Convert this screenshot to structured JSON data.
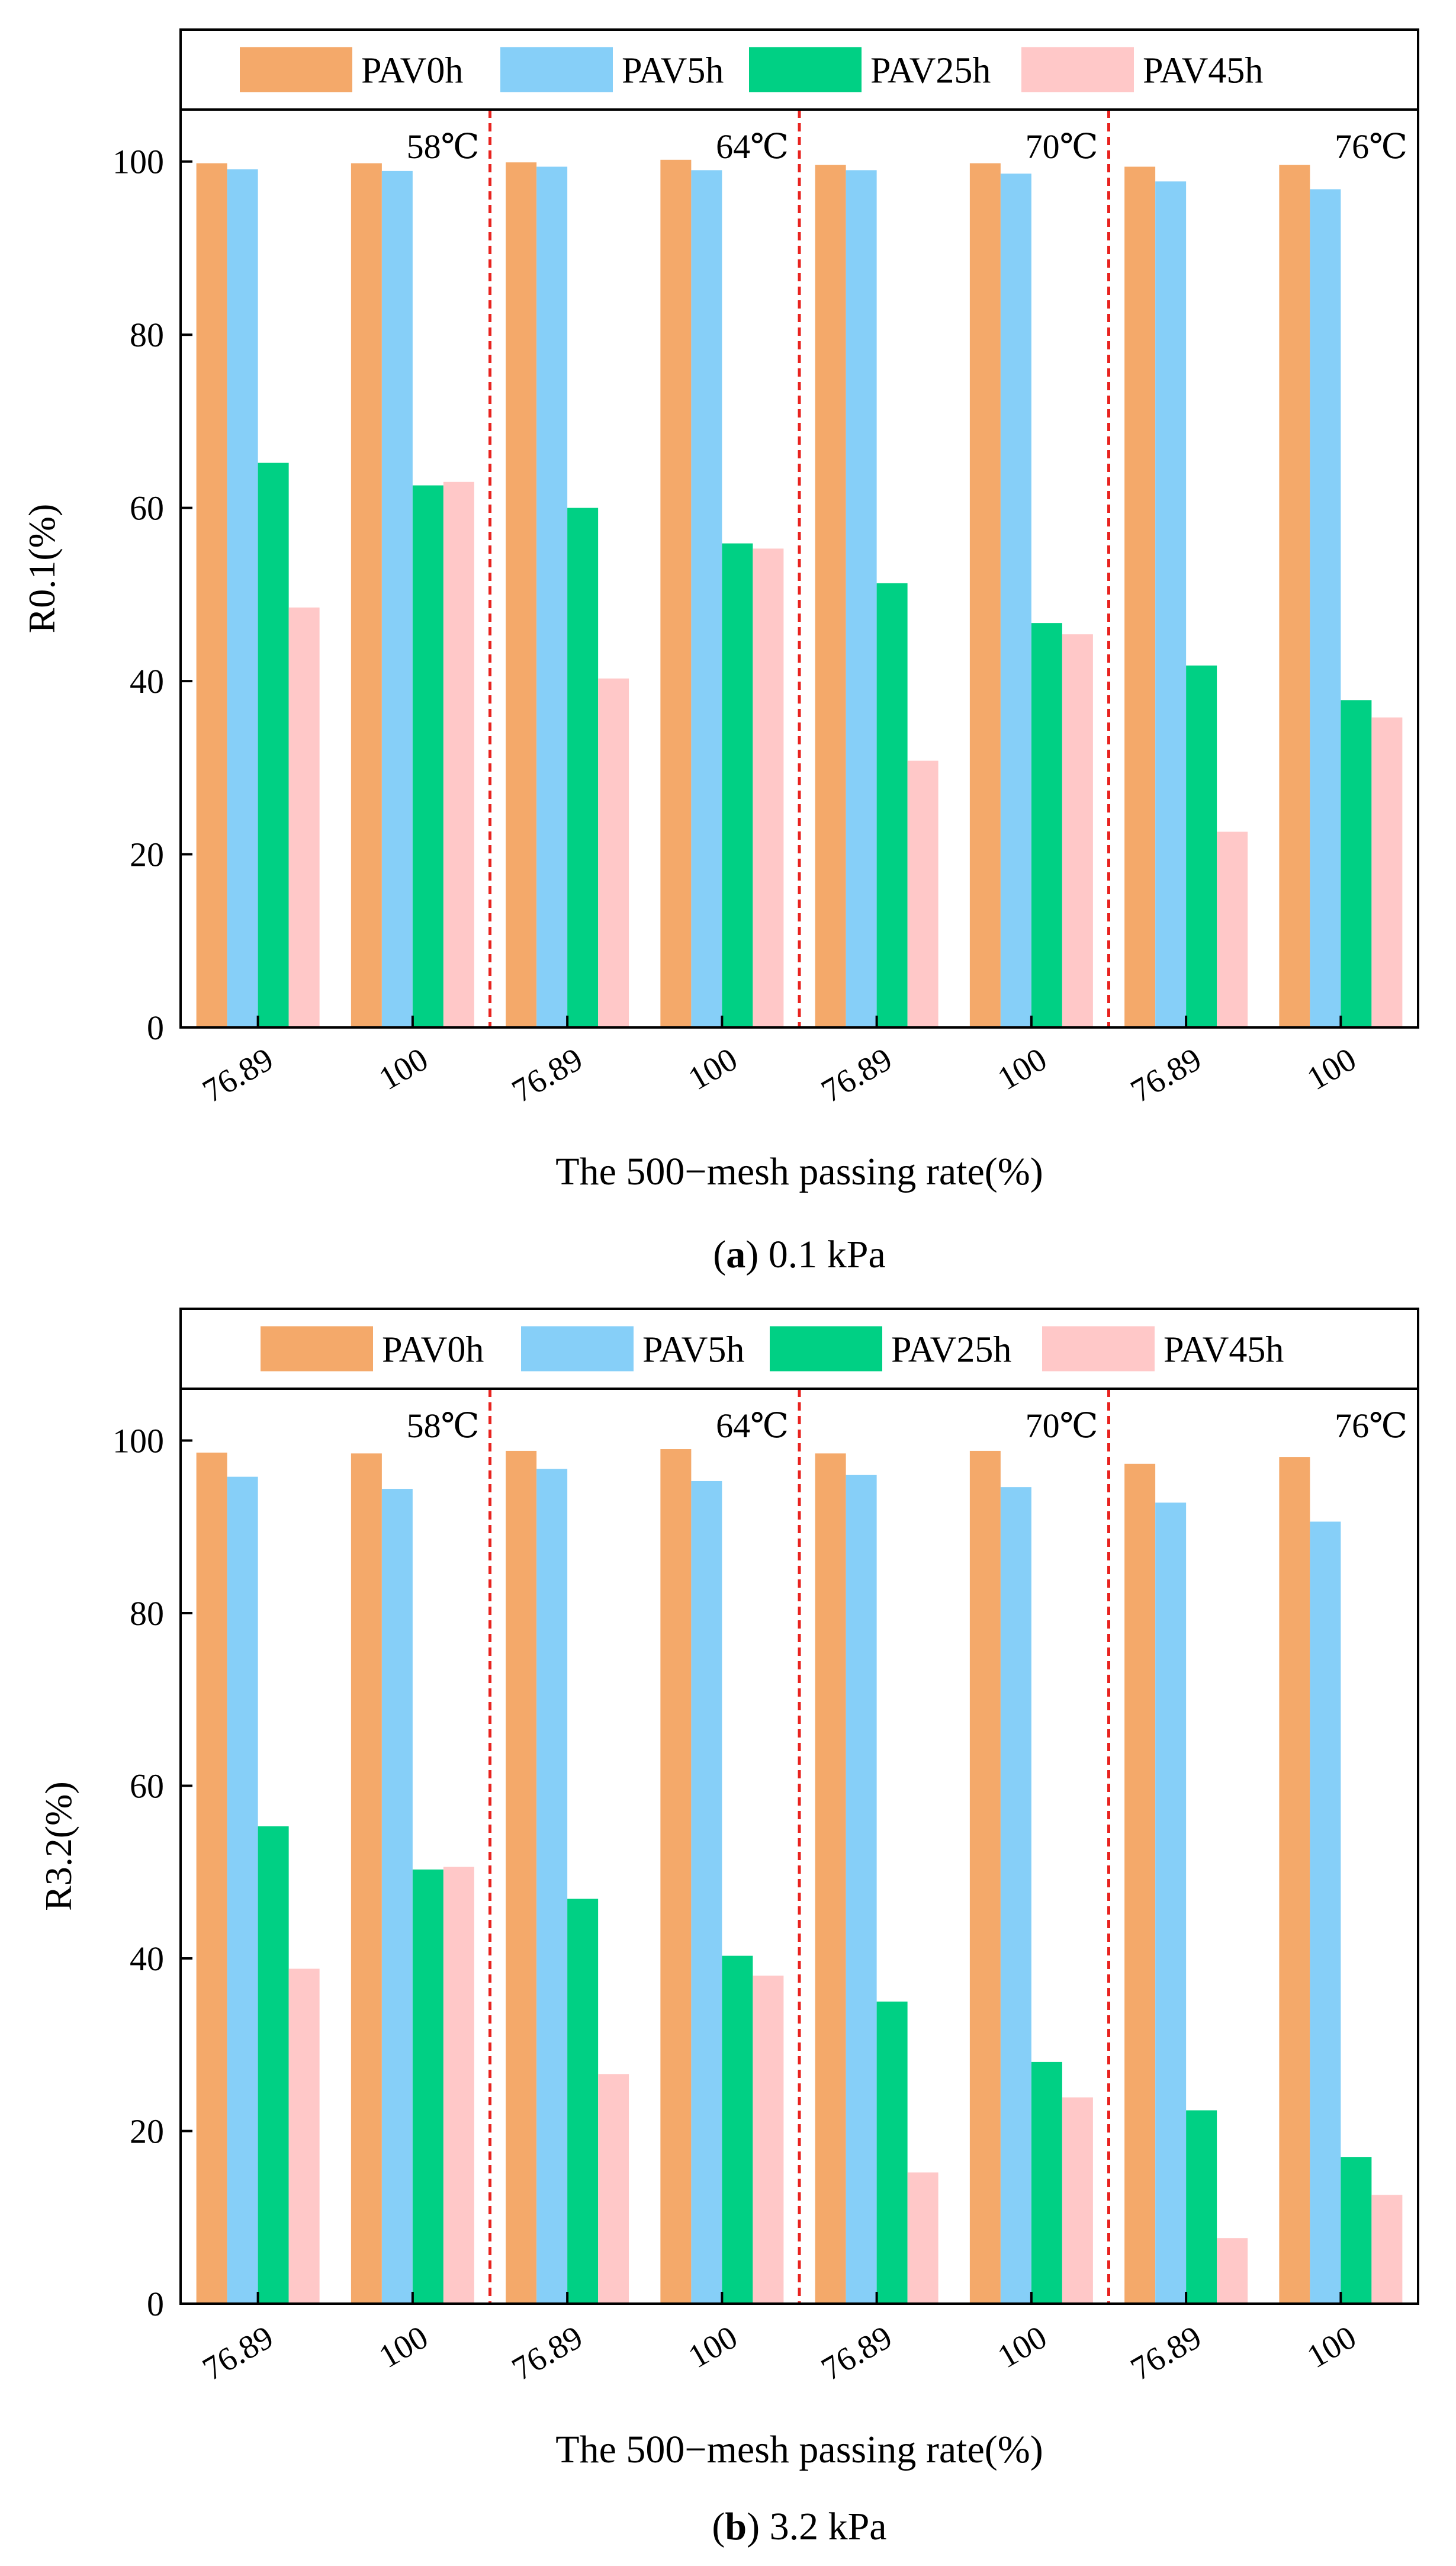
{
  "chart_data": [
    {
      "type": "bar",
      "panel_letter": "a",
      "caption": "0.1 kPa",
      "xlabel": "The 500−mesh passing rate(%)",
      "ylabel": "R0.1(%)",
      "ylim": [
        0,
        106
      ],
      "yticks": [
        0,
        20,
        40,
        60,
        80,
        100
      ],
      "categories": [
        "76.89",
        "100",
        "76.89",
        "100",
        "76.89",
        "100",
        "76.89",
        "100"
      ],
      "group_labels": [
        "58℃",
        "64℃",
        "70℃",
        "76℃"
      ],
      "legend_position": "top",
      "series": [
        {
          "name": "PAV0h",
          "color": "#F4A96A",
          "values": [
            99.8,
            99.8,
            99.9,
            100.2,
            99.6,
            99.8,
            99.4,
            99.6
          ]
        },
        {
          "name": "PAV5h",
          "color": "#86CFF8",
          "values": [
            99.1,
            98.9,
            99.4,
            99.0,
            99.0,
            98.6,
            97.7,
            96.8
          ]
        },
        {
          "name": "PAV25h",
          "color": "#00D084",
          "values": [
            65.2,
            62.6,
            60.0,
            55.9,
            51.3,
            46.7,
            41.8,
            37.8
          ]
        },
        {
          "name": "PAV45h",
          "color": "#FFC8C8",
          "values": [
            48.5,
            63.0,
            40.3,
            55.3,
            30.8,
            45.4,
            22.6,
            35.8
          ]
        }
      ]
    },
    {
      "type": "bar",
      "panel_letter": "b",
      "caption": "3.2 kPa",
      "xlabel": "The 500−mesh passing rate(%)",
      "ylabel": "R3.2(%)",
      "ylim": [
        0,
        106
      ],
      "yticks": [
        0,
        20,
        40,
        60,
        80,
        100
      ],
      "categories": [
        "76.89",
        "100",
        "76.89",
        "100",
        "76.89",
        "100",
        "76.89",
        "100"
      ],
      "group_labels": [
        "58℃",
        "64℃",
        "70℃",
        "76℃"
      ],
      "legend_position": "top",
      "series": [
        {
          "name": "PAV0h",
          "color": "#F4A96A",
          "values": [
            98.6,
            98.5,
            98.8,
            99.0,
            98.5,
            98.8,
            97.3,
            98.1
          ]
        },
        {
          "name": "PAV5h",
          "color": "#86CFF8",
          "values": [
            95.8,
            94.4,
            96.7,
            95.3,
            96.0,
            94.6,
            92.8,
            90.6
          ]
        },
        {
          "name": "PAV25h",
          "color": "#00D084",
          "values": [
            55.3,
            50.3,
            46.9,
            40.3,
            35.0,
            28.0,
            22.4,
            17.0
          ]
        },
        {
          "name": "PAV45h",
          "color": "#FFC8C8",
          "values": [
            38.8,
            50.6,
            26.6,
            38.0,
            15.2,
            23.9,
            7.6,
            12.6
          ]
        }
      ]
    }
  ]
}
